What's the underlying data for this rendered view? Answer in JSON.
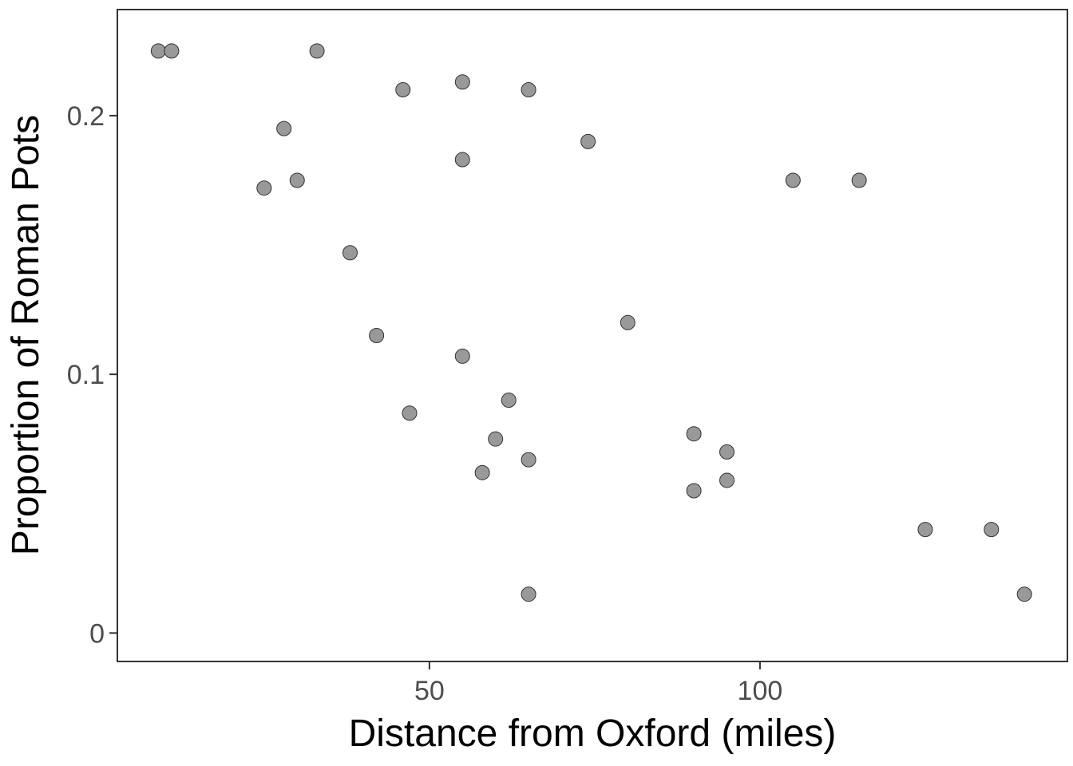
{
  "chart_data": {
    "type": "scatter",
    "xlabel": "Distance from Oxford (miles)",
    "ylabel": "Proportion of Roman Pots",
    "xlim": [
      2.8,
      146.5
    ],
    "ylim": [
      -0.011,
      0.241
    ],
    "x_ticks": [
      {
        "value": 50,
        "label": "50"
      },
      {
        "value": 100,
        "label": "100"
      }
    ],
    "y_ticks": [
      {
        "value": 0,
        "label": "0"
      },
      {
        "value": 0.1,
        "label": "0.1"
      },
      {
        "value": 0.2,
        "label": "0.2"
      }
    ],
    "grid": false,
    "point_color": "#999999",
    "point_stroke": "#333333",
    "points": [
      {
        "x": 9,
        "y": 0.225
      },
      {
        "x": 11,
        "y": 0.225
      },
      {
        "x": 33,
        "y": 0.225
      },
      {
        "x": 46,
        "y": 0.21
      },
      {
        "x": 55,
        "y": 0.213
      },
      {
        "x": 65,
        "y": 0.21
      },
      {
        "x": 28,
        "y": 0.195
      },
      {
        "x": 74,
        "y": 0.19
      },
      {
        "x": 55,
        "y": 0.183
      },
      {
        "x": 25,
        "y": 0.172
      },
      {
        "x": 30,
        "y": 0.175
      },
      {
        "x": 105,
        "y": 0.175
      },
      {
        "x": 115,
        "y": 0.175
      },
      {
        "x": 38,
        "y": 0.147
      },
      {
        "x": 80,
        "y": 0.12
      },
      {
        "x": 42,
        "y": 0.115
      },
      {
        "x": 55,
        "y": 0.107
      },
      {
        "x": 62,
        "y": 0.09
      },
      {
        "x": 47,
        "y": 0.085
      },
      {
        "x": 90,
        "y": 0.077
      },
      {
        "x": 60,
        "y": 0.075
      },
      {
        "x": 95,
        "y": 0.07
      },
      {
        "x": 65,
        "y": 0.067
      },
      {
        "x": 58,
        "y": 0.062
      },
      {
        "x": 95,
        "y": 0.059
      },
      {
        "x": 90,
        "y": 0.055
      },
      {
        "x": 125,
        "y": 0.04
      },
      {
        "x": 135,
        "y": 0.04
      },
      {
        "x": 65,
        "y": 0.015
      },
      {
        "x": 140,
        "y": 0.015
      }
    ]
  }
}
